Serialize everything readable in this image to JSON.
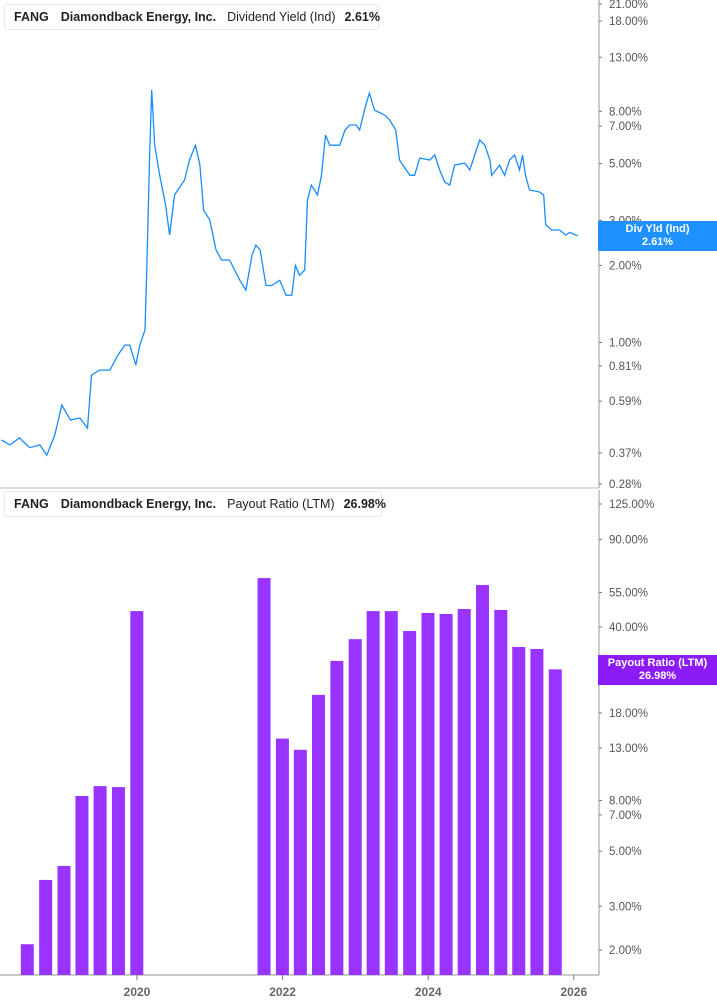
{
  "top_panel": {
    "legend": {
      "ticker": "FANG",
      "company": "Diamondback Energy, Inc.",
      "metric": "Dividend Yield (Ind)",
      "value": "2.61%"
    },
    "tag": {
      "label": "Div Yld (Ind)",
      "value": "2.61%"
    }
  },
  "bottom_panel": {
    "legend": {
      "ticker": "FANG",
      "company": "Diamondback Energy, Inc.",
      "metric": "Payout Ratio (LTM)",
      "value": "26.98%"
    },
    "tag": {
      "label": "Payout Ratio (LTM)",
      "value": "26.98%"
    }
  },
  "chart_data": [
    {
      "type": "line",
      "series": [
        {
          "name": "Dividend Yield (Ind)",
          "color": "#1a8cff",
          "points": [
            [
              "2018-02-20",
              0.416
            ],
            [
              "2018-04-05",
              0.398
            ],
            [
              "2018-05-22",
              0.424
            ],
            [
              "2018-07-12",
              0.388
            ],
            [
              "2018-09-01",
              0.398
            ],
            [
              "2018-10-06",
              0.363
            ],
            [
              "2018-11-15",
              0.435
            ],
            [
              "2018-12-20",
              0.57
            ],
            [
              "2019-02-01",
              0.498
            ],
            [
              "2019-03-20",
              0.507
            ],
            [
              "2019-04-28",
              0.463
            ],
            [
              "2019-05-18",
              0.746
            ],
            [
              "2019-06-27",
              0.78
            ],
            [
              "2019-08-18",
              0.78
            ],
            [
              "2019-09-27",
              0.893
            ],
            [
              "2019-11-01",
              0.977
            ],
            [
              "2019-11-26",
              0.977
            ],
            [
              "2019-12-26",
              0.816
            ],
            [
              "2020-01-15",
              0.977
            ],
            [
              "2020-02-10",
              1.12
            ],
            [
              "2020-02-20",
              2.0
            ],
            [
              "2020-03-04",
              5.16
            ],
            [
              "2020-03-15",
              9.69
            ],
            [
              "2020-03-30",
              5.9
            ],
            [
              "2020-04-24",
              4.5
            ],
            [
              "2020-05-24",
              3.44
            ],
            [
              "2020-06-13",
              2.63
            ],
            [
              "2020-07-08",
              3.77
            ],
            [
              "2020-08-27",
              4.31
            ],
            [
              "2020-09-21",
              5.16
            ],
            [
              "2020-10-21",
              5.9
            ],
            [
              "2020-11-12",
              4.93
            ],
            [
              "2020-12-01",
              3.29
            ],
            [
              "2021-01-01",
              3.01
            ],
            [
              "2021-02-01",
              2.3
            ],
            [
              "2021-03-01",
              2.1
            ],
            [
              "2021-04-10",
              2.1
            ],
            [
              "2021-06-01",
              1.75
            ],
            [
              "2021-07-01",
              1.6
            ],
            [
              "2021-08-01",
              2.2
            ],
            [
              "2021-08-20",
              2.4
            ],
            [
              "2021-09-10",
              2.3
            ],
            [
              "2021-10-10",
              1.67
            ],
            [
              "2021-11-07",
              1.67
            ],
            [
              "2021-12-18",
              1.75
            ],
            [
              "2022-01-18",
              1.53
            ],
            [
              "2022-02-16",
              1.53
            ],
            [
              "2022-03-06",
              2.0
            ],
            [
              "2022-03-27",
              1.83
            ],
            [
              "2022-04-22",
              1.92
            ],
            [
              "2022-05-06",
              3.6
            ],
            [
              "2022-05-25",
              4.12
            ],
            [
              "2022-06-25",
              3.77
            ],
            [
              "2022-07-15",
              4.5
            ],
            [
              "2022-08-04",
              6.46
            ],
            [
              "2022-08-25",
              5.9
            ],
            [
              "2022-10-15",
              5.9
            ],
            [
              "2022-11-10",
              6.76
            ],
            [
              "2022-12-04",
              7.07
            ],
            [
              "2023-01-04",
              7.07
            ],
            [
              "2023-01-22",
              6.76
            ],
            [
              "2023-02-22",
              8.46
            ],
            [
              "2023-03-12",
              9.42
            ],
            [
              "2023-04-07",
              8.09
            ],
            [
              "2023-05-28",
              7.73
            ],
            [
              "2023-06-22",
              7.39
            ],
            [
              "2023-07-22",
              6.76
            ],
            [
              "2023-08-10",
              5.16
            ],
            [
              "2023-09-06",
              4.8
            ],
            [
              "2023-10-01",
              4.5
            ],
            [
              "2023-10-25",
              4.5
            ],
            [
              "2023-11-20",
              5.25
            ],
            [
              "2024-01-09",
              5.16
            ],
            [
              "2024-02-03",
              5.4
            ],
            [
              "2024-02-28",
              4.72
            ],
            [
              "2024-03-24",
              4.24
            ],
            [
              "2024-04-18",
              4.12
            ],
            [
              "2024-05-13",
              4.93
            ],
            [
              "2024-07-03",
              5.02
            ],
            [
              "2024-07-28",
              4.72
            ],
            [
              "2024-08-22",
              5.4
            ],
            [
              "2024-09-16",
              6.18
            ],
            [
              "2024-10-12",
              5.9
            ],
            [
              "2024-11-06",
              5.16
            ],
            [
              "2024-11-15",
              4.5
            ],
            [
              "2024-12-25",
              4.93
            ],
            [
              "2025-01-19",
              4.5
            ],
            [
              "2025-02-13",
              5.16
            ],
            [
              "2025-03-10",
              5.4
            ],
            [
              "2025-04-04",
              4.72
            ],
            [
              "2025-04-19",
              5.4
            ],
            [
              "2025-05-04",
              4.5
            ],
            [
              "2025-05-24",
              3.94
            ],
            [
              "2025-07-13",
              3.87
            ],
            [
              "2025-08-03",
              3.77
            ],
            [
              "2025-08-13",
              2.88
            ],
            [
              "2025-09-13",
              2.75
            ],
            [
              "2025-10-22",
              2.75
            ],
            [
              "2025-11-21",
              2.63
            ],
            [
              "2025-12-12",
              2.69
            ],
            [
              "2026-01-21",
              2.61
            ]
          ]
        }
      ],
      "yscale": "log",
      "ylim": [
        0.28,
        21
      ],
      "ytick_values": [
        21,
        18,
        13,
        8,
        7,
        5,
        3,
        2,
        1,
        0.81,
        0.59,
        0.37,
        0.28
      ],
      "ytick_labels": [
        "21.00%",
        "18.00%",
        "13.00%",
        "8.00%",
        "7.00%",
        "5.00%",
        "3.00%",
        "2.00%",
        "1.00%",
        "0.81%",
        "0.59%",
        "0.37%",
        "0.28%"
      ],
      "axis_position": "right",
      "grid": false
    },
    {
      "type": "bar",
      "series": [
        {
          "name": "Payout Ratio (LTM)",
          "color": "#9933ff",
          "dates": [
            "2018-06-30",
            "2018-09-30",
            "2018-12-31",
            "2019-03-31",
            "2019-06-30",
            "2019-09-30",
            "2019-12-31",
            "2021-09-30",
            "2021-12-31",
            "2022-03-31",
            "2022-06-30",
            "2022-09-30",
            "2022-12-31",
            "2023-03-31",
            "2023-06-30",
            "2023-09-30",
            "2023-12-31",
            "2024-03-31",
            "2024-06-30",
            "2024-09-30",
            "2024-12-31",
            "2025-03-31",
            "2025-06-30",
            "2025-09-30"
          ],
          "values": [
            2.11,
            3.83,
            4.36,
            8.34,
            9.14,
            9.06,
            46.3,
            62.9,
            14.2,
            12.8,
            21.3,
            29.2,
            35.7,
            46.3,
            46.3,
            38.5,
            45.5,
            45.1,
            47.2,
            59.0,
            46.8,
            33.2,
            32.6,
            26.98
          ]
        }
      ],
      "yscale": "log",
      "ylim": [
        2,
        125
      ],
      "ytick_values": [
        125,
        90,
        55,
        40,
        25,
        18,
        13,
        8,
        7,
        5,
        3,
        2
      ],
      "ytick_labels": [
        "125.00%",
        "90.00%",
        "55.00%",
        "40.00%",
        "25.00%",
        "18.00%",
        "13.00%",
        "8.00%",
        "7.00%",
        "5.00%",
        "3.00%",
        "2.00%"
      ],
      "xtick_labels": [
        "2020",
        "2022",
        "2024",
        "2026"
      ],
      "axis_position": "right",
      "grid": false
    }
  ]
}
